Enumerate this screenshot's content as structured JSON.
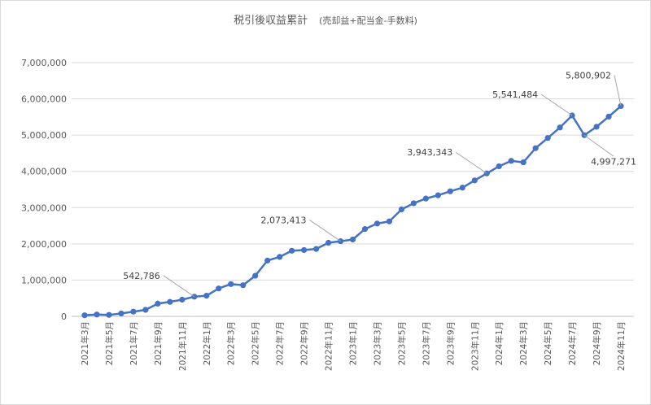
{
  "chart_data": {
    "type": "line",
    "title": "税引後収益累計",
    "subtitle": "(売却益+配当金-手数料)",
    "xlabel": "",
    "ylabel": "",
    "ylim": [
      0,
      7000000
    ],
    "yticks": [
      0,
      1000000,
      2000000,
      3000000,
      4000000,
      5000000,
      6000000,
      7000000
    ],
    "ytick_labels": [
      "0",
      "1,000,000",
      "2,000,000",
      "3,000,000",
      "4,000,000",
      "5,000,000",
      "6,000,000",
      "7,000,000"
    ],
    "grid": true,
    "legend": "none",
    "line_color": "#4472C4",
    "x": [
      "2021年3月",
      "2021年4月",
      "2021年5月",
      "2021年6月",
      "2021年7月",
      "2021年8月",
      "2021年9月",
      "2021年10月",
      "2021年11月",
      "2021年12月",
      "2022年1月",
      "2022年2月",
      "2022年3月",
      "2022年4月",
      "2022年5月",
      "2022年6月",
      "2022年7月",
      "2022年8月",
      "2022年9月",
      "2022年10月",
      "2022年11月",
      "2022年12月",
      "2023年1月",
      "2023年2月",
      "2023年3月",
      "2023年4月",
      "2023年5月",
      "2023年6月",
      "2023年7月",
      "2023年8月",
      "2023年9月",
      "2023年10月",
      "2023年11月",
      "2023年12月",
      "2024年1月",
      "2024年2月",
      "2024年3月",
      "2024年4月",
      "2024年5月",
      "2024年6月",
      "2024年7月",
      "2024年8月",
      "2024年9月",
      "2024年10月",
      "2024年11月"
    ],
    "x_tick_labels": [
      "2021年3月",
      "2021年5月",
      "2021年7月",
      "2021年9月",
      "2021年11月",
      "2022年1月",
      "2022年3月",
      "2022年5月",
      "2022年7月",
      "2022年9月",
      "2022年11月",
      "2023年1月",
      "2023年3月",
      "2023年5月",
      "2023年7月",
      "2023年9月",
      "2023年11月",
      "2024年1月",
      "2024年3月",
      "2024年5月",
      "2024年7月",
      "2024年9月",
      "2024年11月"
    ],
    "values": [
      30000,
      50000,
      40000,
      80000,
      130000,
      180000,
      350000,
      400000,
      460000,
      542786,
      570000,
      770000,
      890000,
      860000,
      1120000,
      1540000,
      1640000,
      1810000,
      1830000,
      1860000,
      2030000,
      2073413,
      2120000,
      2410000,
      2560000,
      2620000,
      2950000,
      3120000,
      3250000,
      3340000,
      3450000,
      3550000,
      3750000,
      3943343,
      4140000,
      4290000,
      4250000,
      4640000,
      4920000,
      5210000,
      5541484,
      4997271,
      5230000,
      5510000,
      5800902
    ],
    "annotations": [
      {
        "index": 9,
        "label": "542,786",
        "side": "left"
      },
      {
        "index": 21,
        "label": "2,073,413",
        "side": "left"
      },
      {
        "index": 33,
        "label": "3,943,343",
        "side": "left"
      },
      {
        "index": 40,
        "label": "5,541,484",
        "side": "left"
      },
      {
        "index": 41,
        "label": "4,997,271",
        "side": "right-below"
      },
      {
        "index": 44,
        "label": "5,800,902",
        "side": "left-above"
      }
    ]
  }
}
